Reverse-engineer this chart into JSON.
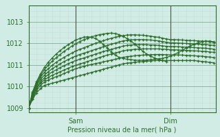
{
  "title": "",
  "xlabel": "Pression niveau de la mer( hPa )",
  "ylabel": "",
  "ylim": [
    1008.8,
    1013.5
  ],
  "xlim": [
    0,
    95
  ],
  "yticks": [
    1009,
    1010,
    1011,
    1012,
    1013
  ],
  "xticks": [
    24,
    72
  ],
  "xticklabels": [
    "Sam",
    "Dim"
  ],
  "bg_color": "#d0ece4",
  "plot_bg_color": "#d0ece4",
  "grid_color_minor": "#c8dcd4",
  "grid_color_major": "#88aa99",
  "line_color": "#2d6e2d",
  "series": [
    {
      "x": [
        0,
        2,
        4,
        6,
        8,
        10,
        12,
        14,
        16,
        18,
        20,
        22,
        24,
        26,
        28,
        30,
        32,
        34,
        36,
        38,
        40,
        42,
        44,
        46,
        48,
        50,
        52,
        54,
        56,
        58,
        60,
        62,
        64,
        66,
        68,
        70,
        72,
        74,
        76,
        78,
        80,
        82,
        84,
        86,
        88,
        90,
        92,
        94
      ],
      "y": [
        1009.0,
        1009.4,
        1009.7,
        1009.9,
        1010.05,
        1010.1,
        1010.15,
        1010.2,
        1010.25,
        1010.3,
        1010.35,
        1010.4,
        1010.45,
        1010.5,
        1010.55,
        1010.6,
        1010.65,
        1010.7,
        1010.75,
        1010.8,
        1010.85,
        1010.9,
        1010.95,
        1011.0,
        1011.05,
        1011.08,
        1011.1,
        1011.12,
        1011.14,
        1011.15,
        1011.17,
        1011.18,
        1011.2,
        1011.2,
        1011.2,
        1011.2,
        1011.2,
        1011.2,
        1011.2,
        1011.2,
        1011.2,
        1011.2,
        1011.2,
        1011.18,
        1011.16,
        1011.14,
        1011.12,
        1011.1
      ]
    },
    {
      "x": [
        0,
        2,
        4,
        6,
        8,
        10,
        12,
        14,
        16,
        18,
        20,
        22,
        24,
        26,
        28,
        30,
        32,
        34,
        36,
        38,
        40,
        42,
        44,
        46,
        48,
        50,
        52,
        54,
        56,
        58,
        60,
        62,
        64,
        66,
        68,
        70,
        72,
        74,
        76,
        78,
        80,
        82,
        84,
        86,
        88,
        90,
        92,
        94
      ],
      "y": [
        1009.0,
        1009.45,
        1009.8,
        1010.05,
        1010.2,
        1010.3,
        1010.38,
        1010.45,
        1010.52,
        1010.6,
        1010.68,
        1010.76,
        1010.82,
        1010.88,
        1010.93,
        1010.98,
        1011.02,
        1011.06,
        1011.1,
        1011.14,
        1011.18,
        1011.22,
        1011.26,
        1011.3,
        1011.35,
        1011.38,
        1011.4,
        1011.42,
        1011.44,
        1011.45,
        1011.46,
        1011.47,
        1011.48,
        1011.48,
        1011.48,
        1011.47,
        1011.46,
        1011.46,
        1011.46,
        1011.45,
        1011.44,
        1011.43,
        1011.42,
        1011.41,
        1011.4,
        1011.38,
        1011.36,
        1011.34
      ]
    },
    {
      "x": [
        0,
        2,
        4,
        6,
        8,
        10,
        12,
        14,
        16,
        18,
        20,
        22,
        24,
        26,
        28,
        30,
        32,
        34,
        36,
        38,
        40,
        42,
        44,
        46,
        48,
        50,
        52,
        54,
        56,
        58,
        60,
        62,
        64,
        66,
        68,
        70,
        72,
        74,
        76,
        78,
        80,
        82,
        84,
        86,
        88,
        90,
        92,
        94
      ],
      "y": [
        1009.0,
        1009.5,
        1009.9,
        1010.15,
        1010.3,
        1010.42,
        1010.52,
        1010.6,
        1010.68,
        1010.76,
        1010.84,
        1010.92,
        1010.98,
        1011.04,
        1011.1,
        1011.16,
        1011.22,
        1011.28,
        1011.34,
        1011.4,
        1011.45,
        1011.5,
        1011.55,
        1011.6,
        1011.65,
        1011.68,
        1011.7,
        1011.72,
        1011.73,
        1011.74,
        1011.74,
        1011.74,
        1011.74,
        1011.74,
        1011.73,
        1011.72,
        1011.7,
        1011.7,
        1011.69,
        1011.68,
        1011.67,
        1011.66,
        1011.65,
        1011.64,
        1011.63,
        1011.62,
        1011.6,
        1011.58
      ]
    },
    {
      "x": [
        0,
        2,
        4,
        6,
        8,
        10,
        12,
        14,
        16,
        18,
        20,
        22,
        24,
        26,
        28,
        30,
        32,
        34,
        36,
        38,
        40,
        42,
        44,
        46,
        48,
        50,
        52,
        54,
        56,
        58,
        60,
        62,
        64,
        66,
        68,
        70,
        72,
        74,
        76,
        78,
        80,
        82,
        84,
        86,
        88,
        90,
        92,
        94
      ],
      "y": [
        1009.0,
        1009.55,
        1009.95,
        1010.22,
        1010.4,
        1010.55,
        1010.67,
        1010.77,
        1010.87,
        1010.96,
        1011.05,
        1011.13,
        1011.2,
        1011.26,
        1011.32,
        1011.38,
        1011.44,
        1011.5,
        1011.56,
        1011.62,
        1011.67,
        1011.72,
        1011.77,
        1011.82,
        1011.87,
        1011.9,
        1011.92,
        1011.93,
        1011.94,
        1011.94,
        1011.93,
        1011.92,
        1011.92,
        1011.9,
        1011.88,
        1011.86,
        1011.85,
        1011.85,
        1011.84,
        1011.83,
        1011.82,
        1011.81,
        1011.8,
        1011.79,
        1011.78,
        1011.77,
        1011.75,
        1011.73
      ]
    },
    {
      "x": [
        0,
        2,
        4,
        6,
        8,
        10,
        12,
        14,
        16,
        18,
        20,
        22,
        24,
        26,
        28,
        30,
        32,
        34,
        36,
        38,
        40,
        42,
        44,
        46,
        48,
        50,
        52,
        54,
        56,
        58,
        60,
        62,
        64,
        66,
        68,
        70,
        72,
        74,
        76,
        78,
        80,
        82,
        84,
        86,
        88,
        90,
        92,
        94
      ],
      "y": [
        1009.0,
        1009.6,
        1010.05,
        1010.32,
        1010.52,
        1010.68,
        1010.82,
        1010.94,
        1011.05,
        1011.15,
        1011.24,
        1011.33,
        1011.41,
        1011.48,
        1011.54,
        1011.6,
        1011.66,
        1011.72,
        1011.78,
        1011.84,
        1011.9,
        1011.96,
        1012.01,
        1012.06,
        1012.11,
        1012.14,
        1012.16,
        1012.17,
        1012.17,
        1012.17,
        1012.16,
        1012.15,
        1012.13,
        1012.11,
        1012.08,
        1012.05,
        1012.02,
        1012.02,
        1012.01,
        1012.0,
        1011.99,
        1011.98,
        1011.97,
        1011.96,
        1011.95,
        1011.94,
        1011.92,
        1011.9
      ]
    },
    {
      "x": [
        0,
        2,
        4,
        6,
        8,
        10,
        12,
        14,
        16,
        18,
        20,
        22,
        24,
        26,
        28,
        30,
        32,
        34,
        36,
        38,
        40,
        42,
        44,
        46,
        48,
        50,
        52,
        54,
        56,
        58,
        60,
        62,
        64,
        66,
        68,
        70,
        72,
        74,
        76,
        78,
        80,
        82,
        84,
        86,
        88,
        90,
        92,
        94
      ],
      "y": [
        1009.0,
        1009.65,
        1010.1,
        1010.42,
        1010.65,
        1010.82,
        1010.98,
        1011.12,
        1011.24,
        1011.35,
        1011.45,
        1011.55,
        1011.64,
        1011.72,
        1011.79,
        1011.86,
        1011.93,
        1012.0,
        1012.06,
        1012.12,
        1012.18,
        1012.23,
        1012.28,
        1012.32,
        1012.35,
        1012.38,
        1012.39,
        1012.39,
        1012.38,
        1012.37,
        1012.35,
        1012.33,
        1012.3,
        1012.28,
        1012.24,
        1012.2,
        1012.17,
        1012.17,
        1012.16,
        1012.15,
        1012.14,
        1012.13,
        1012.12,
        1012.11,
        1012.1,
        1012.09,
        1012.07,
        1012.05
      ]
    },
    {
      "x": [
        0,
        2,
        4,
        6,
        8,
        10,
        12,
        14,
        16,
        18,
        20,
        22,
        24,
        26,
        28,
        30,
        32,
        34,
        36,
        38,
        40,
        42,
        44,
        46,
        48,
        50,
        52,
        54,
        56,
        58,
        60,
        62,
        64,
        66,
        68,
        70
      ],
      "y": [
        1009.0,
        1009.7,
        1010.15,
        1010.5,
        1010.78,
        1010.98,
        1011.17,
        1011.33,
        1011.48,
        1011.62,
        1011.75,
        1011.87,
        1011.98,
        1012.08,
        1012.16,
        1012.23,
        1012.3,
        1012.35,
        1012.4,
        1012.43,
        1012.46,
        1012.47,
        1012.45,
        1012.4,
        1012.32,
        1012.22,
        1012.1,
        1011.96,
        1011.8,
        1011.63,
        1011.5,
        1011.4,
        1011.32,
        1011.25,
        1011.2,
        1011.16
      ]
    },
    {
      "x": [
        0,
        2,
        4,
        6,
        8,
        10,
        12,
        14,
        16,
        18,
        20,
        22,
        24,
        26,
        28,
        30,
        32,
        34,
        36,
        38,
        40,
        42,
        44,
        46,
        48,
        50,
        52,
        54,
        56,
        58,
        60,
        62,
        64,
        66,
        68,
        70,
        72,
        74,
        76,
        78,
        80,
        82,
        84,
        86,
        88,
        90,
        92,
        94
      ],
      "y": [
        1009.0,
        1009.75,
        1010.22,
        1010.58,
        1010.88,
        1011.12,
        1011.32,
        1011.5,
        1011.66,
        1011.8,
        1011.93,
        1012.05,
        1012.15,
        1012.22,
        1012.28,
        1012.3,
        1012.28,
        1012.22,
        1012.1,
        1011.95,
        1011.78,
        1011.6,
        1011.45,
        1011.35,
        1011.3,
        1011.26,
        1011.24,
        1011.22,
        1011.21,
        1011.21,
        1011.22,
        1011.24,
        1011.26,
        1011.28,
        1011.3,
        1011.35,
        1011.4,
        1011.48,
        1011.57,
        1011.67,
        1011.78,
        1011.87,
        1011.95,
        1012.02,
        1012.06,
        1012.1,
        1012.1,
        1012.07
      ]
    }
  ]
}
